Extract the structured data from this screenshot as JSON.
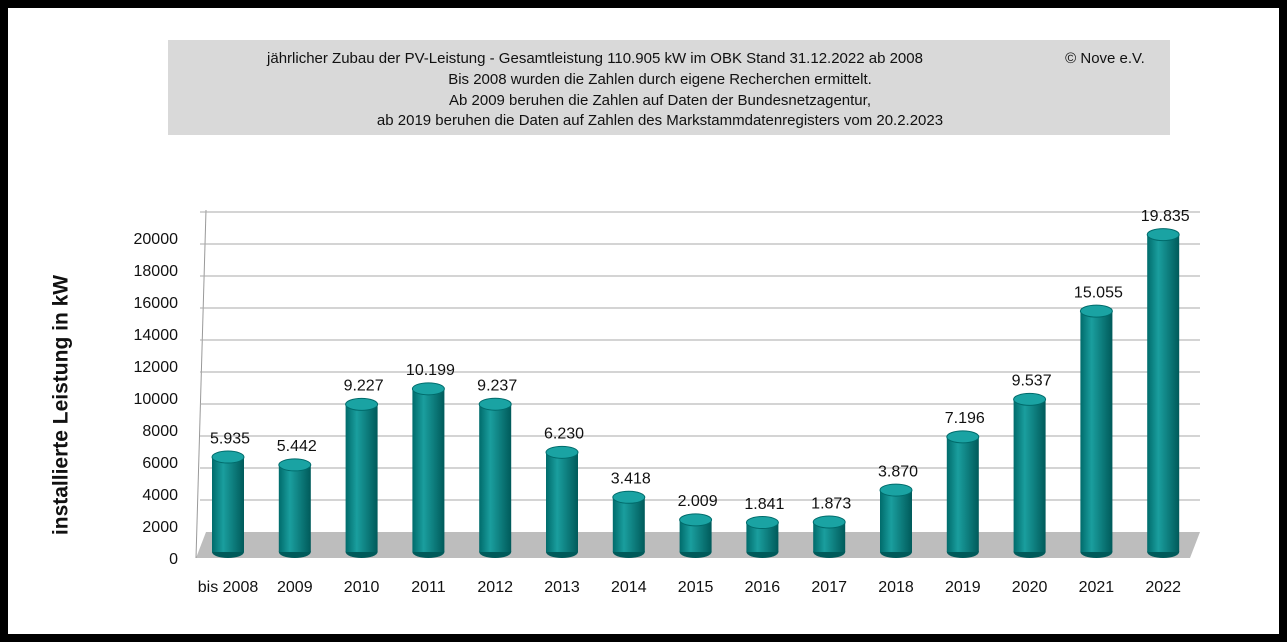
{
  "chart_data": {
    "type": "bar",
    "title": [
      "jährlicher Zubau der PV-Leistung - Gesamtleistung 110.905 kW  im OBK  Stand 31.12.2022 ab 2008",
      "Bis 2008 wurden die Zahlen durch eigene Recherchen ermittelt.",
      "Ab 2009 beruhen die Zahlen auf Daten der Bundesnetzagentur,",
      "ab 2019 beruhen die Daten auf Zahlen des Markstammdatenregisters vom 20.2.2023"
    ],
    "copyright": "© Nove e.V.",
    "y_label": "installierte Leistung in kW",
    "categories": [
      "bis 2008",
      "2009",
      "2010",
      "2011",
      "2012",
      "2013",
      "2014",
      "2015",
      "2016",
      "2017",
      "2018",
      "2019",
      "2020",
      "2021",
      "2022"
    ],
    "values": [
      5935,
      5442,
      9227,
      10199,
      9237,
      6230,
      3418,
      2009,
      1841,
      1873,
      3870,
      7196,
      9537,
      15055,
      19835
    ],
    "value_labels": [
      "5.935",
      "5.442",
      "9.227",
      "10.199",
      "9.237",
      "6.230",
      "3.418",
      "2.009",
      "1.841",
      "1.873",
      "3.870",
      "7.196",
      "9.537",
      "15.055",
      "19.835"
    ],
    "color": "#008080",
    "ylim": [
      0,
      20000
    ],
    "yticks": [
      0,
      2000,
      4000,
      6000,
      8000,
      10000,
      12000,
      14000,
      16000,
      18000,
      20000
    ],
    "grid": true
  }
}
